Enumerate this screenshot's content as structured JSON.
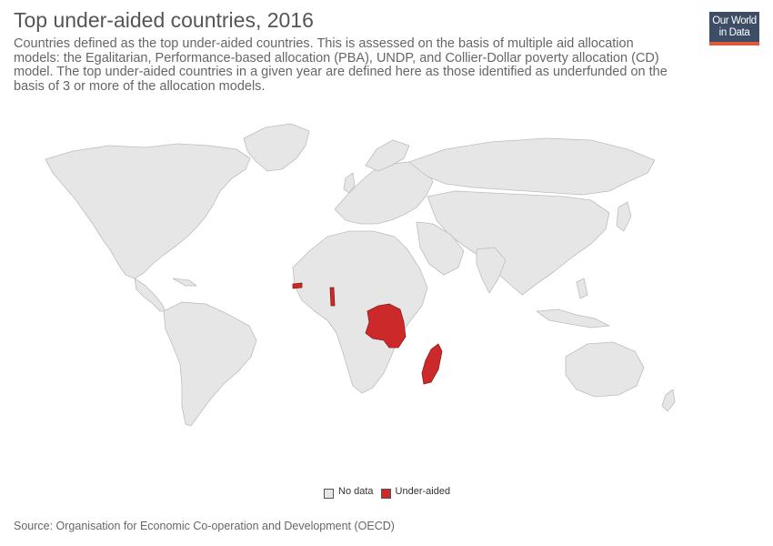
{
  "header": {
    "title": "Top under-aided countries, 2016",
    "subtitle": "Countries defined as the top under-aided countries. This is assessed on the basis of multiple aid allocation models: the Egalitarian, Performance-based allocation (PBA), UNDP, and Collier-Dollar poverty allocation (CD) model. The top under-aided countries in a given year are defined here as those identified as underfunded on the basis of 3 or more of the allocation models."
  },
  "logo": {
    "line1": "Our World",
    "line2": "in Data"
  },
  "map": {
    "year": "2016",
    "colors": {
      "no_data": "#e6e6e6",
      "under_aided": "#cc2a2a",
      "border": "#bdbdbd"
    },
    "highlighted_countries": [
      "Democratic Republic of the Congo",
      "Madagascar",
      "Togo",
      "Gambia"
    ]
  },
  "legend": {
    "items": [
      {
        "label": "No data",
        "color": "#e6e6e6"
      },
      {
        "label": "Under-aided",
        "color": "#cc2a2a"
      }
    ]
  },
  "footer": {
    "source": "Source: Organisation for Economic Co-operation and Development (OECD)"
  }
}
